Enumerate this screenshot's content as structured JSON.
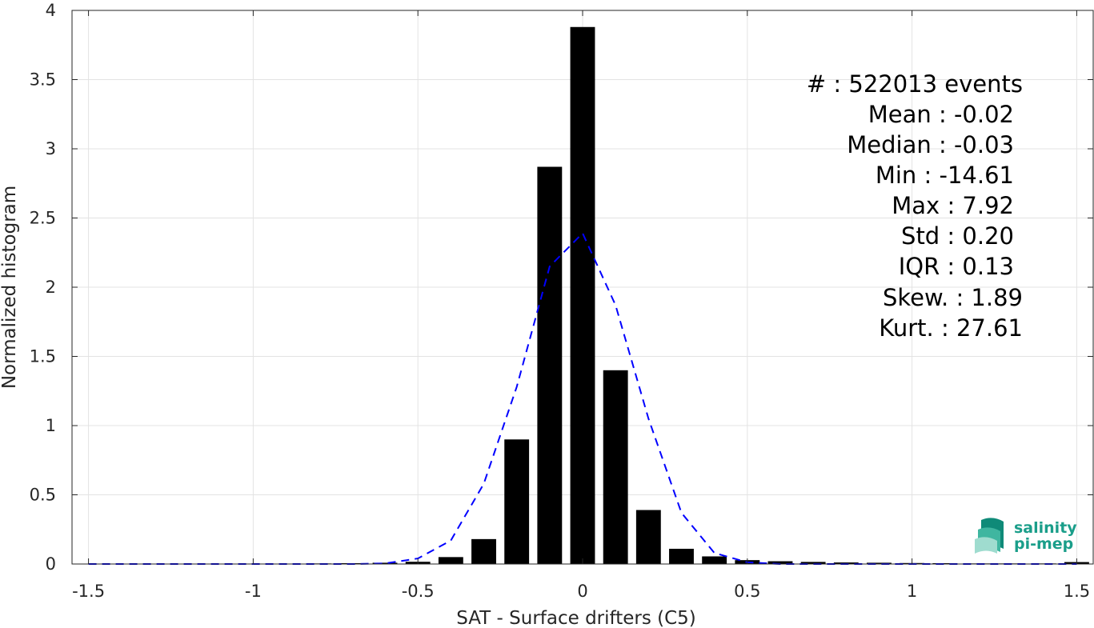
{
  "chart_data": {
    "type": "bar",
    "xlabel": "SAT - Surface drifters (C5)",
    "ylabel": "Normalized histogram",
    "xlim": [
      -1.55,
      1.55
    ],
    "ylim": [
      0,
      4
    ],
    "xticks": [
      "-1.5",
      "-1",
      "-0.5",
      "0",
      "0.5",
      "1",
      "1.5"
    ],
    "yticks": [
      "0",
      "0.5",
      "1",
      "1.5",
      "2",
      "2.5",
      "3",
      "3.5",
      "4"
    ],
    "grid": true,
    "bar_width": 0.075,
    "bars": {
      "x": [
        -1.5,
        -1.4,
        -1.3,
        -1.2,
        -1.1,
        -1.0,
        -0.9,
        -0.8,
        -0.7,
        -0.6,
        -0.5,
        -0.4,
        -0.3,
        -0.2,
        -0.1,
        0.0,
        0.1,
        0.2,
        0.3,
        0.4,
        0.5,
        0.6,
        0.7,
        0.8,
        0.9,
        1.0,
        1.1,
        1.2,
        1.3,
        1.4,
        1.5
      ],
      "values": [
        0.002,
        0.002,
        0.002,
        0.002,
        0.002,
        0.003,
        0.003,
        0.004,
        0.006,
        0.009,
        0.016,
        0.05,
        0.18,
        0.9,
        2.87,
        3.88,
        1.4,
        0.39,
        0.11,
        0.055,
        0.028,
        0.02,
        0.015,
        0.011,
        0.009,
        0.007,
        0.006,
        0.004,
        0.004,
        0.004,
        0.014
      ],
      "color": "#000000"
    },
    "fit_line": {
      "x": [
        -1.5,
        -1.4,
        -1.3,
        -1.2,
        -1.1,
        -1.0,
        -0.9,
        -0.8,
        -0.7,
        -0.6,
        -0.5,
        -0.4,
        -0.3,
        -0.2,
        -0.1,
        0.0,
        0.1,
        0.2,
        0.3,
        0.4,
        0.5,
        0.6,
        0.7,
        0.8,
        0.9,
        1.0,
        1.1,
        1.2,
        1.3,
        1.4,
        1.5
      ],
      "y": [
        0,
        0,
        0,
        0,
        0,
        0,
        0,
        0,
        0,
        0.004,
        0.04,
        0.17,
        0.58,
        1.28,
        2.15,
        2.39,
        1.87,
        1.05,
        0.37,
        0.08,
        0.012,
        0,
        0,
        0,
        0,
        0,
        0,
        0,
        0,
        0,
        0
      ],
      "color": "#0000ff",
      "style": "dashed"
    },
    "annotations": [
      "#  : 522013 events",
      "Mean : -0.02",
      "Median : -0.03",
      "Min : -14.61",
      "Max : 7.92",
      "Std : 0.20",
      "IQR : 0.13",
      "Skew. : 1.89",
      "Kurt. : 27.61"
    ]
  },
  "logo": {
    "line1": "salinity",
    "line2": "pi-mep",
    "color": "#1a9e8a"
  }
}
